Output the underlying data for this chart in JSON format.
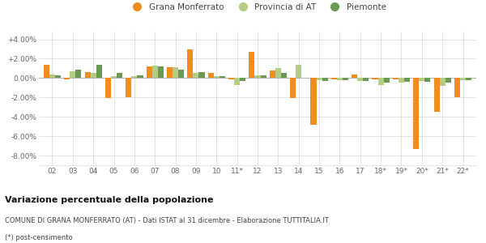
{
  "years": [
    "02",
    "03",
    "04",
    "05",
    "06",
    "07",
    "08",
    "09",
    "10",
    "11*",
    "12",
    "13",
    "14",
    "15",
    "16",
    "17",
    "18*",
    "19*",
    "20*",
    "21*",
    "22*"
  ],
  "grana": [
    1.4,
    -0.1,
    0.6,
    -2.1,
    -2.0,
    1.2,
    1.1,
    3.0,
    0.5,
    -0.1,
    2.7,
    0.8,
    -2.1,
    -4.8,
    -0.1,
    0.4,
    -0.1,
    -0.1,
    -7.3,
    -3.5,
    -2.0
  ],
  "provincia": [
    0.4,
    0.7,
    0.5,
    0.2,
    0.2,
    1.3,
    1.1,
    0.5,
    0.2,
    -0.7,
    0.3,
    1.0,
    1.4,
    -0.2,
    -0.2,
    -0.3,
    -0.7,
    -0.5,
    -0.3,
    -0.8,
    -0.2
  ],
  "piemonte": [
    0.3,
    0.9,
    1.4,
    0.5,
    0.3,
    1.2,
    0.9,
    0.6,
    0.2,
    -0.3,
    0.3,
    0.5,
    0.0,
    -0.3,
    -0.2,
    -0.3,
    -0.5,
    -0.4,
    -0.4,
    -0.5,
    -0.2
  ],
  "grana_color": "#f28c1e",
  "provincia_color": "#b5cc85",
  "piemonte_color": "#6b9955",
  "bg_color": "#ffffff",
  "grid_color": "#d8d8d8",
  "title": "Variazione percentuale della popolazione",
  "subtitle": "COMUNE DI GRANA MONFERRATO (AT) - Dati ISTAT al 31 dicembre - Elaborazione TUTTITALIA.IT",
  "footnote": "(*) post-censimento",
  "ylim": [
    -9.0,
    4.8
  ],
  "yticks": [
    -8.0,
    -6.0,
    -4.0,
    -2.0,
    0.0,
    2.0,
    4.0
  ],
  "ytick_labels": [
    "-8.00%",
    "-6.00%",
    "-4.00%",
    "-2.00%",
    "0.00%",
    "+2.00%",
    "+4.00%"
  ]
}
